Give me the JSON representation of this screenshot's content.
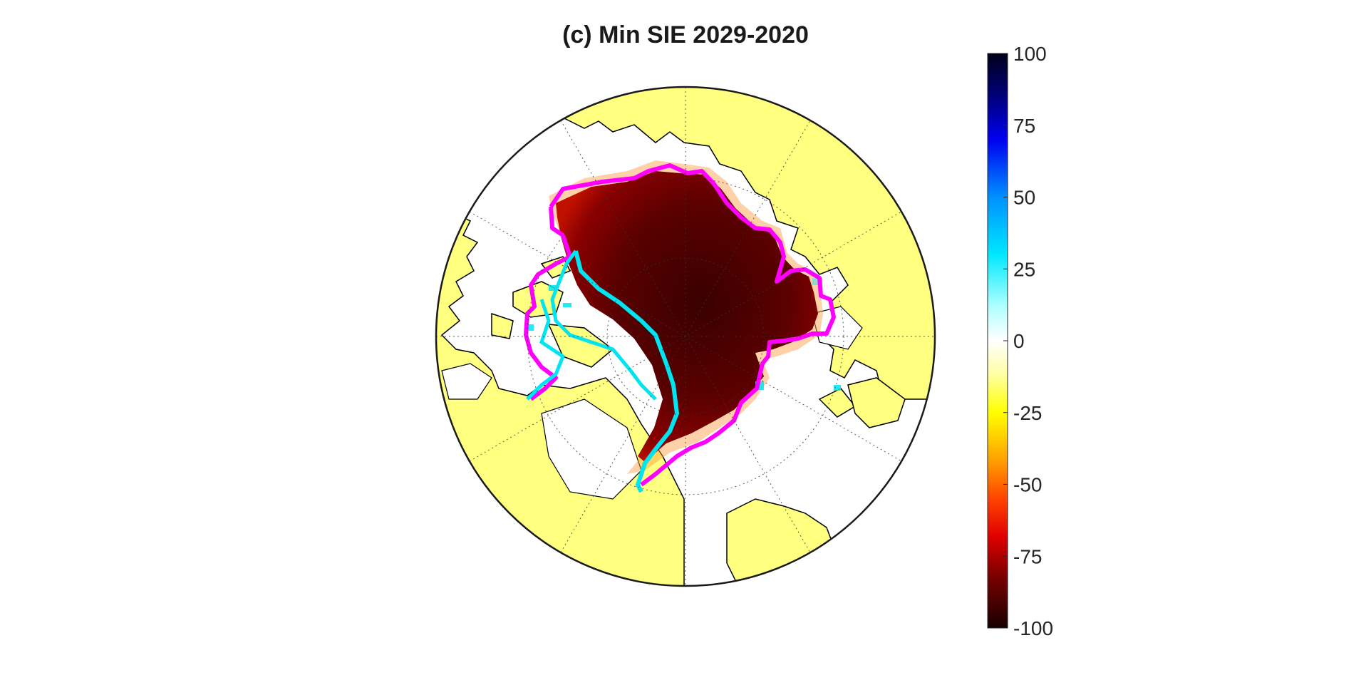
{
  "figure": {
    "title": "(c) Min SIE 2029-2020"
  },
  "colorbar": {
    "ticks": [
      {
        "value": 100,
        "label": "100"
      },
      {
        "value": 75,
        "label": "75"
      },
      {
        "value": 50,
        "label": "50"
      },
      {
        "value": 25,
        "label": "25"
      },
      {
        "value": 0,
        "label": "0"
      },
      {
        "value": -25,
        "label": "-25"
      },
      {
        "value": -50,
        "label": "-50"
      },
      {
        "value": -75,
        "label": "-75"
      },
      {
        "value": -100,
        "label": "-100"
      }
    ],
    "range": [
      -100,
      100
    ],
    "colormap_stops": [
      {
        "value": 100,
        "color": "#000018"
      },
      {
        "value": 85,
        "color": "#00007a"
      },
      {
        "value": 70,
        "color": "#0000f0"
      },
      {
        "value": 50,
        "color": "#0090ff"
      },
      {
        "value": 30,
        "color": "#00e8ff"
      },
      {
        "value": 12,
        "color": "#b0ffff"
      },
      {
        "value": 0,
        "color": "#ffffff"
      },
      {
        "value": -12,
        "color": "#ffffa0"
      },
      {
        "value": -25,
        "color": "#ffff00"
      },
      {
        "value": -40,
        "color": "#ffaa00"
      },
      {
        "value": -55,
        "color": "#ff4400"
      },
      {
        "value": -68,
        "color": "#e00000"
      },
      {
        "value": -82,
        "color": "#7a0000"
      },
      {
        "value": -100,
        "color": "#180000"
      }
    ]
  },
  "map": {
    "projection": "north polar stereographic",
    "colors": {
      "land": "#ffff80",
      "ocean": "#ffffff",
      "ice_loss": "#4a0000",
      "contour_magenta": "#ff00ff",
      "contour_cyan": "#00e5f0",
      "graticule": "#333333",
      "coastline": "#000000"
    }
  }
}
